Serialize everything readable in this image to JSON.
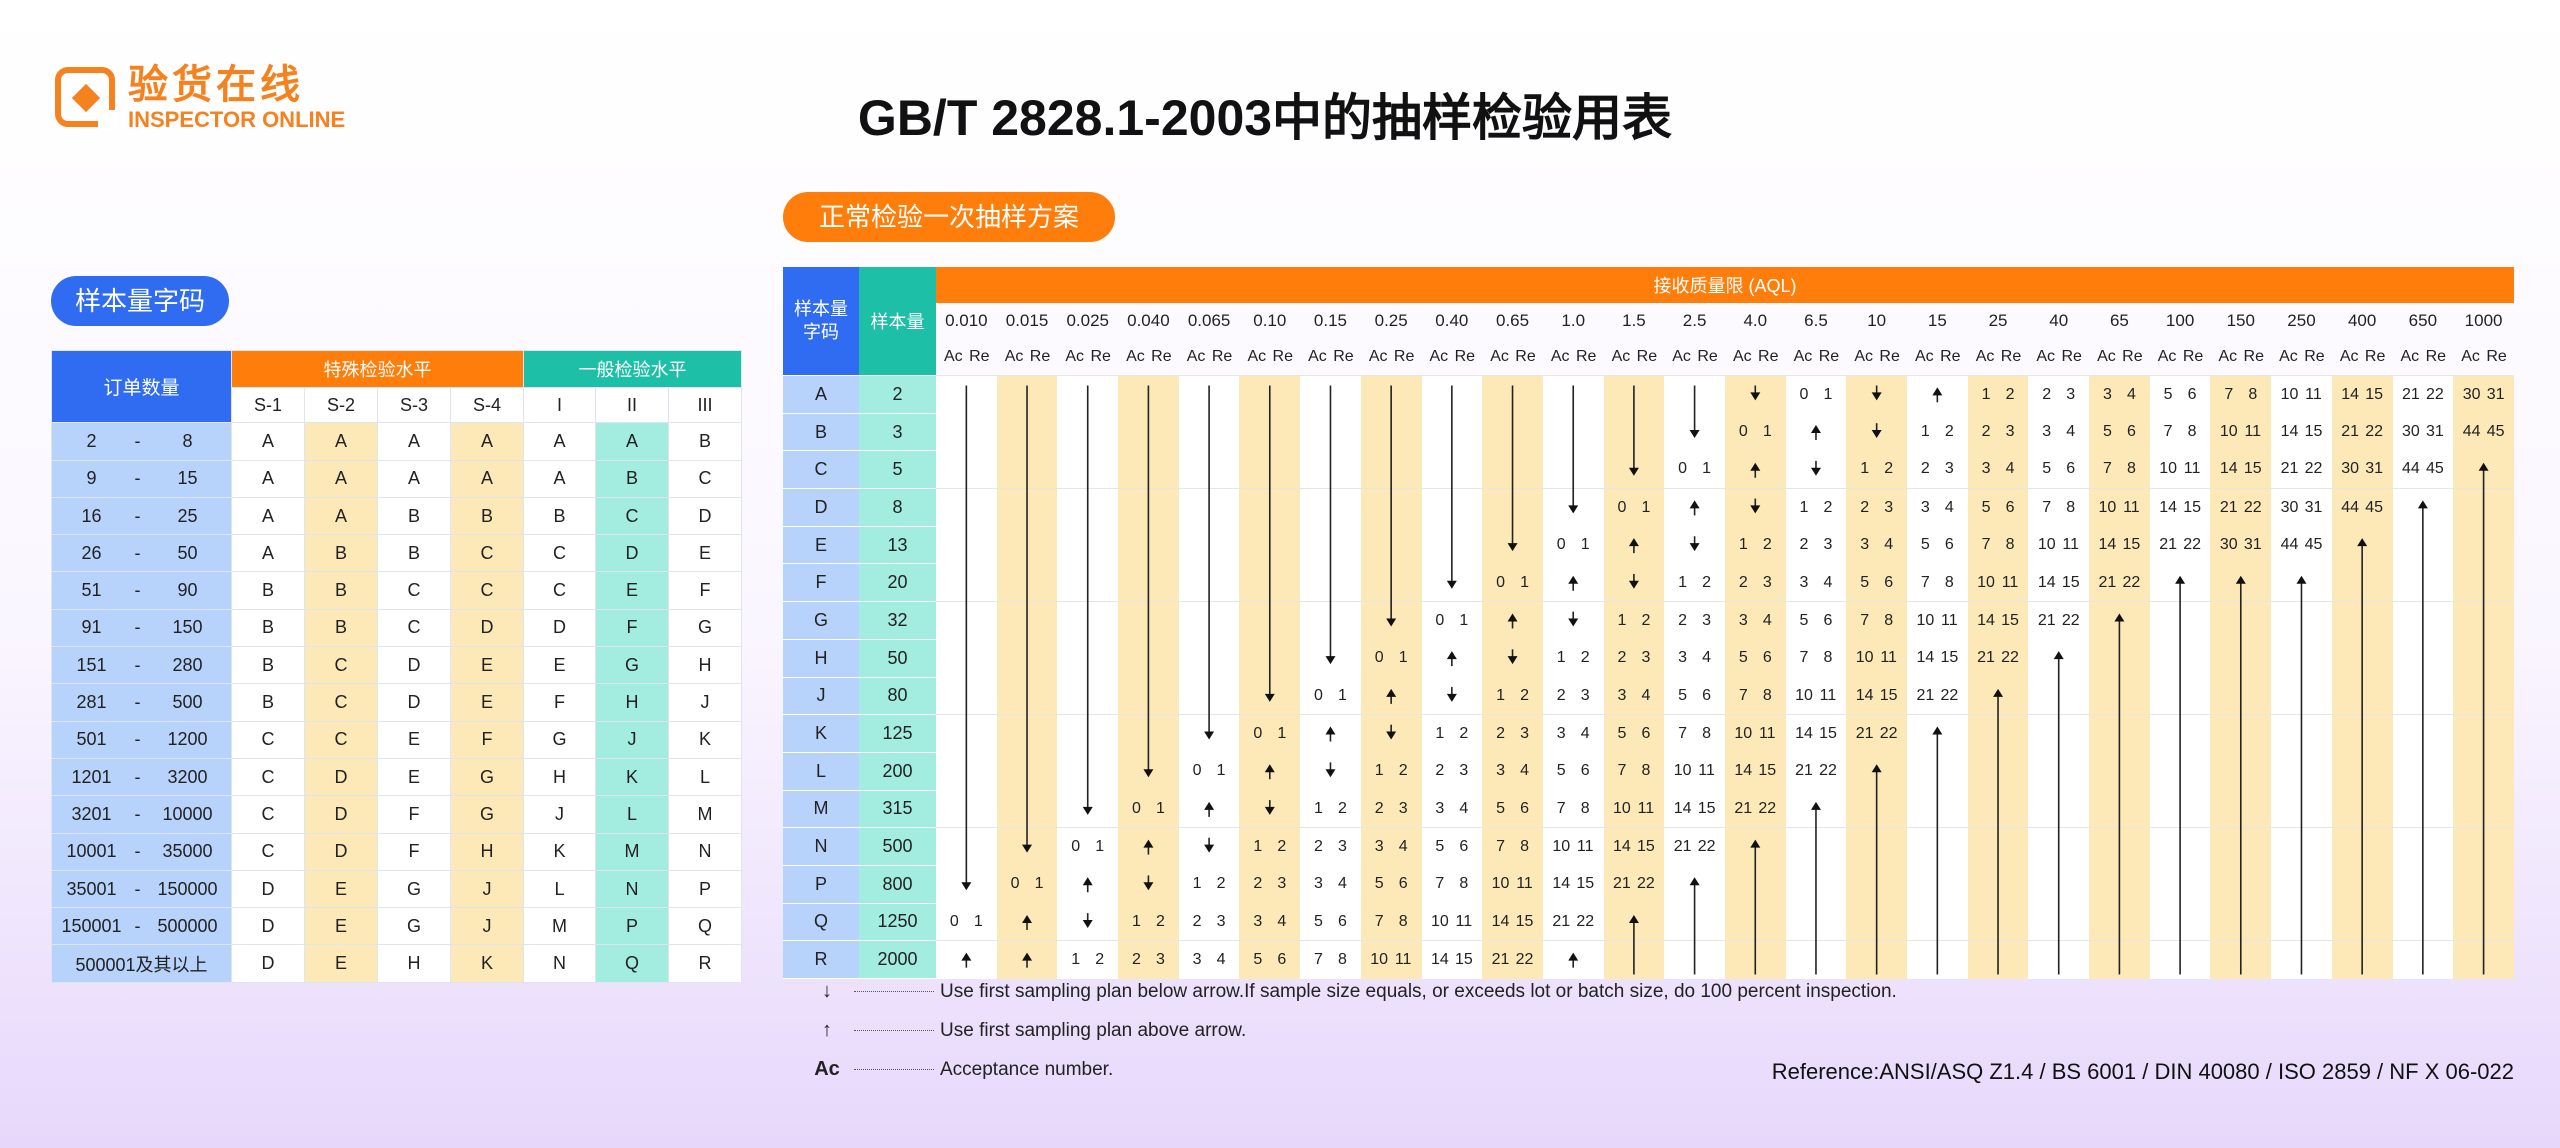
{
  "logo": {
    "cn": "验货在线",
    "en": "INSPECTOR ONLINE"
  },
  "title": "GB/T 2828.1-2003中的抽样检验用表",
  "colors": {
    "blue": "#2f6cf2",
    "orange": "#ff7d0a",
    "teal": "#1dbfa6",
    "light_blue": "#b7d3fb",
    "light_yellow": "#fde9b8",
    "light_teal": "#a2ece0"
  },
  "left": {
    "pill": "样本量字码",
    "lot_header": "订单数量",
    "special_header": "特殊检验水平",
    "general_header": "一般检验水平",
    "levels": [
      "S-1",
      "S-2",
      "S-3",
      "S-4",
      "I",
      "II",
      "III"
    ],
    "rows": [
      {
        "from": "2",
        "to": "8",
        "codes": [
          "A",
          "A",
          "A",
          "A",
          "A",
          "A",
          "B"
        ]
      },
      {
        "from": "9",
        "to": "15",
        "codes": [
          "A",
          "A",
          "A",
          "A",
          "A",
          "B",
          "C"
        ]
      },
      {
        "from": "16",
        "to": "25",
        "codes": [
          "A",
          "A",
          "B",
          "B",
          "B",
          "C",
          "D"
        ]
      },
      {
        "from": "26",
        "to": "50",
        "codes": [
          "A",
          "B",
          "B",
          "C",
          "C",
          "D",
          "E"
        ]
      },
      {
        "from": "51",
        "to": "90",
        "codes": [
          "B",
          "B",
          "C",
          "C",
          "C",
          "E",
          "F"
        ]
      },
      {
        "from": "91",
        "to": "150",
        "codes": [
          "B",
          "B",
          "C",
          "D",
          "D",
          "F",
          "G"
        ]
      },
      {
        "from": "151",
        "to": "280",
        "codes": [
          "B",
          "C",
          "D",
          "E",
          "E",
          "G",
          "H"
        ]
      },
      {
        "from": "281",
        "to": "500",
        "codes": [
          "B",
          "C",
          "D",
          "E",
          "F",
          "H",
          "J"
        ]
      },
      {
        "from": "501",
        "to": "1200",
        "codes": [
          "C",
          "C",
          "E",
          "F",
          "G",
          "J",
          "K"
        ]
      },
      {
        "from": "1201",
        "to": "3200",
        "codes": [
          "C",
          "D",
          "E",
          "G",
          "H",
          "K",
          "L"
        ]
      },
      {
        "from": "3201",
        "to": "10000",
        "codes": [
          "C",
          "D",
          "F",
          "G",
          "J",
          "L",
          "M"
        ]
      },
      {
        "from": "10001",
        "to": "35000",
        "codes": [
          "C",
          "D",
          "F",
          "H",
          "K",
          "M",
          "N"
        ]
      },
      {
        "from": "35001",
        "to": "150000",
        "codes": [
          "D",
          "E",
          "G",
          "J",
          "L",
          "N",
          "P"
        ]
      },
      {
        "from": "150001",
        "to": "500000",
        "codes": [
          "D",
          "E",
          "G",
          "J",
          "M",
          "P",
          "Q"
        ]
      },
      {
        "from": "500001及其以上",
        "to": "",
        "codes": [
          "D",
          "E",
          "H",
          "K",
          "N",
          "Q",
          "R"
        ]
      }
    ]
  },
  "right": {
    "pill": "正常检验一次抽样方案",
    "code_header": "样本量字码",
    "size_header": "样本量",
    "aql_header": "接收质量限 (AQL)",
    "ac_label": "Ac",
    "re_label": "Re",
    "aql": [
      "0.010",
      "0.015",
      "0.025",
      "0.040",
      "0.065",
      "0.10",
      "0.15",
      "0.25",
      "0.40",
      "0.65",
      "1.0",
      "1.5",
      "2.5",
      "4.0",
      "6.5",
      "10",
      "15",
      "25",
      "40",
      "65",
      "100",
      "150",
      "250",
      "400",
      "650",
      "1000"
    ],
    "rows": [
      {
        "code": "A",
        "size": "2",
        "cells": [
          "d",
          "d",
          "d",
          "d",
          "d",
          "d",
          "d",
          "d",
          "d",
          "d",
          "d",
          "d",
          "d",
          "v",
          "0 1",
          "v",
          "u",
          "1 2",
          "2 3",
          "3 4",
          "5 6",
          "7 8",
          "10 11",
          "14 15",
          "21 22",
          "30 31"
        ]
      },
      {
        "code": "B",
        "size": "3",
        "cells": [
          "d",
          "d",
          "d",
          "d",
          "d",
          "d",
          "d",
          "d",
          "d",
          "d",
          "d",
          "d",
          "v",
          "0 1",
          "u",
          "v",
          "1 2",
          "2 3",
          "3 4",
          "5 6",
          "7 8",
          "10 11",
          "14 15",
          "21 22",
          "30 31",
          "44 45"
        ]
      },
      {
        "code": "C",
        "size": "5",
        "cells": [
          "d",
          "d",
          "d",
          "d",
          "d",
          "d",
          "d",
          "d",
          "d",
          "d",
          "d",
          "v",
          "0 1",
          "u",
          "v",
          "1 2",
          "2 3",
          "3 4",
          "5 6",
          "7 8",
          "10 11",
          "14 15",
          "21 22",
          "30 31",
          "44 45",
          "u"
        ]
      },
      {
        "code": "D",
        "size": "8",
        "cells": [
          "d",
          "d",
          "d",
          "d",
          "d",
          "d",
          "d",
          "d",
          "d",
          "d",
          "v",
          "0 1",
          "u",
          "v",
          "1 2",
          "2 3",
          "3 4",
          "5 6",
          "7 8",
          "10 11",
          "14 15",
          "21 22",
          "30 31",
          "44 45",
          "u",
          "d"
        ]
      },
      {
        "code": "E",
        "size": "13",
        "cells": [
          "d",
          "d",
          "d",
          "d",
          "d",
          "d",
          "d",
          "d",
          "d",
          "v",
          "0 1",
          "u",
          "v",
          "1 2",
          "2 3",
          "3 4",
          "5 6",
          "7 8",
          "10 11",
          "14 15",
          "21 22",
          "30 31",
          "44 45",
          "u",
          "d",
          "d"
        ]
      },
      {
        "code": "F",
        "size": "20",
        "cells": [
          "d",
          "d",
          "d",
          "d",
          "d",
          "d",
          "d",
          "d",
          "v",
          "0 1",
          "u",
          "v",
          "1 2",
          "2 3",
          "3 4",
          "5 6",
          "7 8",
          "10 11",
          "14 15",
          "21 22",
          "u",
          "u",
          "u",
          "d",
          "d",
          "d"
        ]
      },
      {
        "code": "G",
        "size": "32",
        "cells": [
          "d",
          "d",
          "d",
          "d",
          "d",
          "d",
          "d",
          "v",
          "0 1",
          "u",
          "v",
          "1 2",
          "2 3",
          "3 4",
          "5 6",
          "7 8",
          "10 11",
          "14 15",
          "21 22",
          "u",
          "d",
          "d",
          "d",
          "d",
          "d",
          "d"
        ]
      },
      {
        "code": "H",
        "size": "50",
        "cells": [
          "d",
          "d",
          "d",
          "d",
          "d",
          "d",
          "v",
          "0 1",
          "u",
          "v",
          "1 2",
          "2 3",
          "3 4",
          "5 6",
          "7 8",
          "10 11",
          "14 15",
          "21 22",
          "u",
          "d",
          "d",
          "d",
          "d",
          "d",
          "d",
          "d"
        ]
      },
      {
        "code": "J",
        "size": "80",
        "cells": [
          "d",
          "d",
          "d",
          "d",
          "d",
          "v",
          "0 1",
          "u",
          "v",
          "1 2",
          "2 3",
          "3 4",
          "5 6",
          "7 8",
          "10 11",
          "14 15",
          "21 22",
          "u",
          "d",
          "d",
          "d",
          "d",
          "d",
          "d",
          "d",
          "d"
        ]
      },
      {
        "code": "K",
        "size": "125",
        "cells": [
          "d",
          "d",
          "d",
          "d",
          "v",
          "0 1",
          "u",
          "v",
          "1 2",
          "2 3",
          "3 4",
          "5 6",
          "7 8",
          "10 11",
          "14 15",
          "21 22",
          "u",
          "d",
          "d",
          "d",
          "d",
          "d",
          "d",
          "d",
          "d",
          "d"
        ]
      },
      {
        "code": "L",
        "size": "200",
        "cells": [
          "d",
          "d",
          "d",
          "v",
          "0 1",
          "u",
          "v",
          "1 2",
          "2 3",
          "3 4",
          "5 6",
          "7 8",
          "10 11",
          "14 15",
          "21 22",
          "u",
          "d",
          "d",
          "d",
          "d",
          "d",
          "d",
          "d",
          "d",
          "d",
          "d"
        ]
      },
      {
        "code": "M",
        "size": "315",
        "cells": [
          "d",
          "d",
          "v",
          "0 1",
          "u",
          "v",
          "1 2",
          "2 3",
          "3 4",
          "5 6",
          "7 8",
          "10 11",
          "14 15",
          "21 22",
          "u",
          "d",
          "d",
          "d",
          "d",
          "d",
          "d",
          "d",
          "d",
          "d",
          "d",
          "d"
        ]
      },
      {
        "code": "N",
        "size": "500",
        "cells": [
          "d",
          "v",
          "0 1",
          "u",
          "v",
          "1 2",
          "2 3",
          "3 4",
          "5 6",
          "7 8",
          "10 11",
          "14 15",
          "21 22",
          "u",
          "d",
          "d",
          "d",
          "d",
          "d",
          "d",
          "d",
          "d",
          "d",
          "d",
          "d",
          "d"
        ]
      },
      {
        "code": "P",
        "size": "800",
        "cells": [
          "v",
          "0 1",
          "u",
          "v",
          "1 2",
          "2 3",
          "3 4",
          "5 6",
          "7 8",
          "10 11",
          "14 15",
          "21 22",
          "u",
          "d",
          "d",
          "d",
          "d",
          "d",
          "d",
          "d",
          "d",
          "d",
          "d",
          "d",
          "d",
          "d"
        ]
      },
      {
        "code": "Q",
        "size": "1250",
        "cells": [
          "0 1",
          "u",
          "v",
          "1 2",
          "2 3",
          "3 4",
          "5 6",
          "7 8",
          "10 11",
          "14 15",
          "21 22",
          "u",
          "d",
          "d",
          "d",
          "d",
          "d",
          "d",
          "d",
          "d",
          "d",
          "d",
          "d",
          "d",
          "d",
          "d"
        ]
      },
      {
        "code": "R",
        "size": "2000",
        "cells": [
          "u",
          "u",
          "1 2",
          "2 3",
          "3 4",
          "5 6",
          "7 8",
          "10 11",
          "14 15",
          "21 22",
          "u",
          "d",
          "d",
          "d",
          "d",
          "d",
          "d",
          "d",
          "d",
          "d",
          "d",
          "d",
          "d",
          "d",
          "d",
          "d"
        ]
      }
    ]
  },
  "legend": [
    {
      "symbol": "↓",
      "text": "Use first sampling plan below arrow.If sample size equals, or exceeds lot or batch size, do 100 percent inspection."
    },
    {
      "symbol": "↑",
      "text": "Use first sampling plan above arrow."
    },
    {
      "symbol": "Ac",
      "text": "Acceptance number."
    }
  ],
  "reference": "Reference:ANSI/ASQ Z1.4 / BS 6001 / DIN 40080 / ISO 2859 / NF X 06-022"
}
